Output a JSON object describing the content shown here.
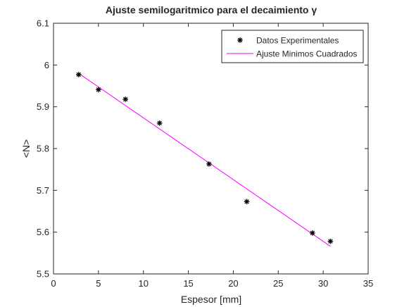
{
  "chart_data": {
    "type": "scatter",
    "title": "Ajuste semilogaritmico para el decaimiento γ",
    "xlabel": "Espesor [mm]",
    "ylabel": "<N>",
    "xlim": [
      0,
      35
    ],
    "ylim": [
      5.5,
      6.1
    ],
    "xticks": [
      0,
      5,
      10,
      15,
      20,
      25,
      30,
      35
    ],
    "yticks": [
      5.5,
      5.6,
      5.7,
      5.8,
      5.9,
      6,
      6.1
    ],
    "grid": false,
    "legend": {
      "position": "top-right"
    },
    "series": [
      {
        "name": "Datos Experimentales",
        "kind": "scatter",
        "marker": "asterisk",
        "color": "#000000",
        "x": [
          2.8,
          5.0,
          8.0,
          11.8,
          17.3,
          21.5,
          28.8,
          30.8
        ],
        "y": [
          5.977,
          5.941,
          5.918,
          5.861,
          5.763,
          5.673,
          5.598,
          5.578
        ]
      },
      {
        "name": "Ajuste Minimos Cuadrados",
        "kind": "line",
        "color": "#ff00ff",
        "x": [
          2.8,
          30.8
        ],
        "y": [
          5.98,
          5.566
        ]
      }
    ]
  }
}
